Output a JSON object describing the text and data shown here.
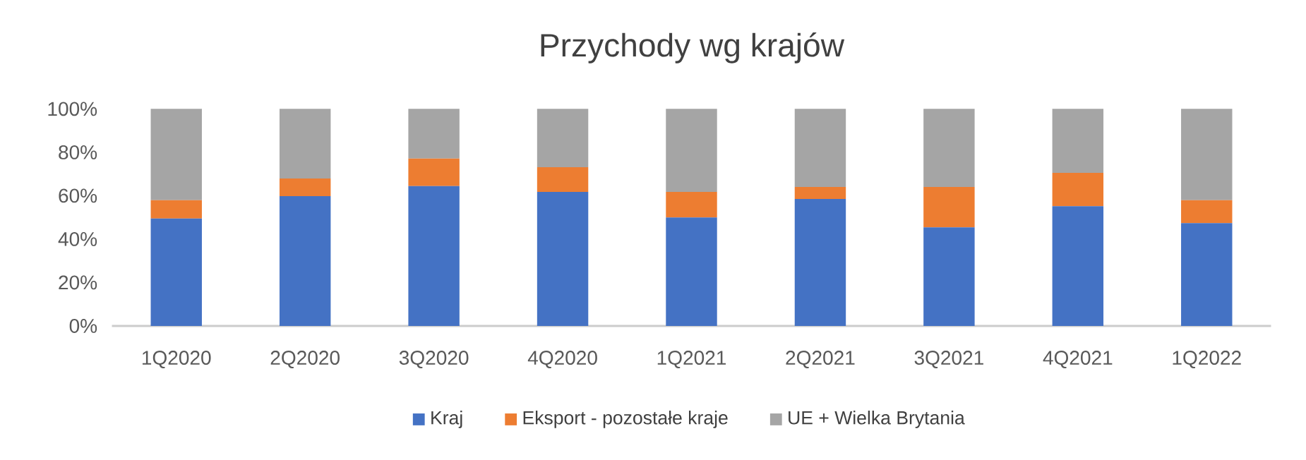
{
  "chart_data": {
    "type": "bar",
    "stacked": true,
    "title": "Przychody wg krajów",
    "categories": [
      "1Q2020",
      "2Q2020",
      "3Q2020",
      "4Q2020",
      "1Q2021",
      "2Q2021",
      "3Q2021",
      "4Q2021",
      "1Q2022"
    ],
    "series": [
      {
        "name": "Kraj",
        "color": "#4472c4",
        "values": [
          49.5,
          59.8,
          64.4,
          61.8,
          50.0,
          58.5,
          45.4,
          55.2,
          47.4
        ]
      },
      {
        "name": "Eksport - pozostałe kraje",
        "color": "#ed7d31",
        "values": [
          8.4,
          8.1,
          12.7,
          11.3,
          11.8,
          5.5,
          18.6,
          15.3,
          10.5
        ]
      },
      {
        "name": "UE + Wielka Brytania",
        "color": "#a5a5a5",
        "values": [
          42.1,
          32.1,
          22.9,
          26.9,
          38.2,
          36.0,
          36.0,
          29.5,
          42.1
        ]
      }
    ],
    "ylim": [
      0,
      100
    ],
    "yticks": [
      {
        "value": 0,
        "label": "0%"
      },
      {
        "value": 20,
        "label": "20%"
      },
      {
        "value": 40,
        "label": "40%"
      },
      {
        "value": 60,
        "label": "60%"
      },
      {
        "value": 80,
        "label": "80%"
      },
      {
        "value": 100,
        "label": "100%"
      }
    ],
    "legend": "bottom"
  }
}
